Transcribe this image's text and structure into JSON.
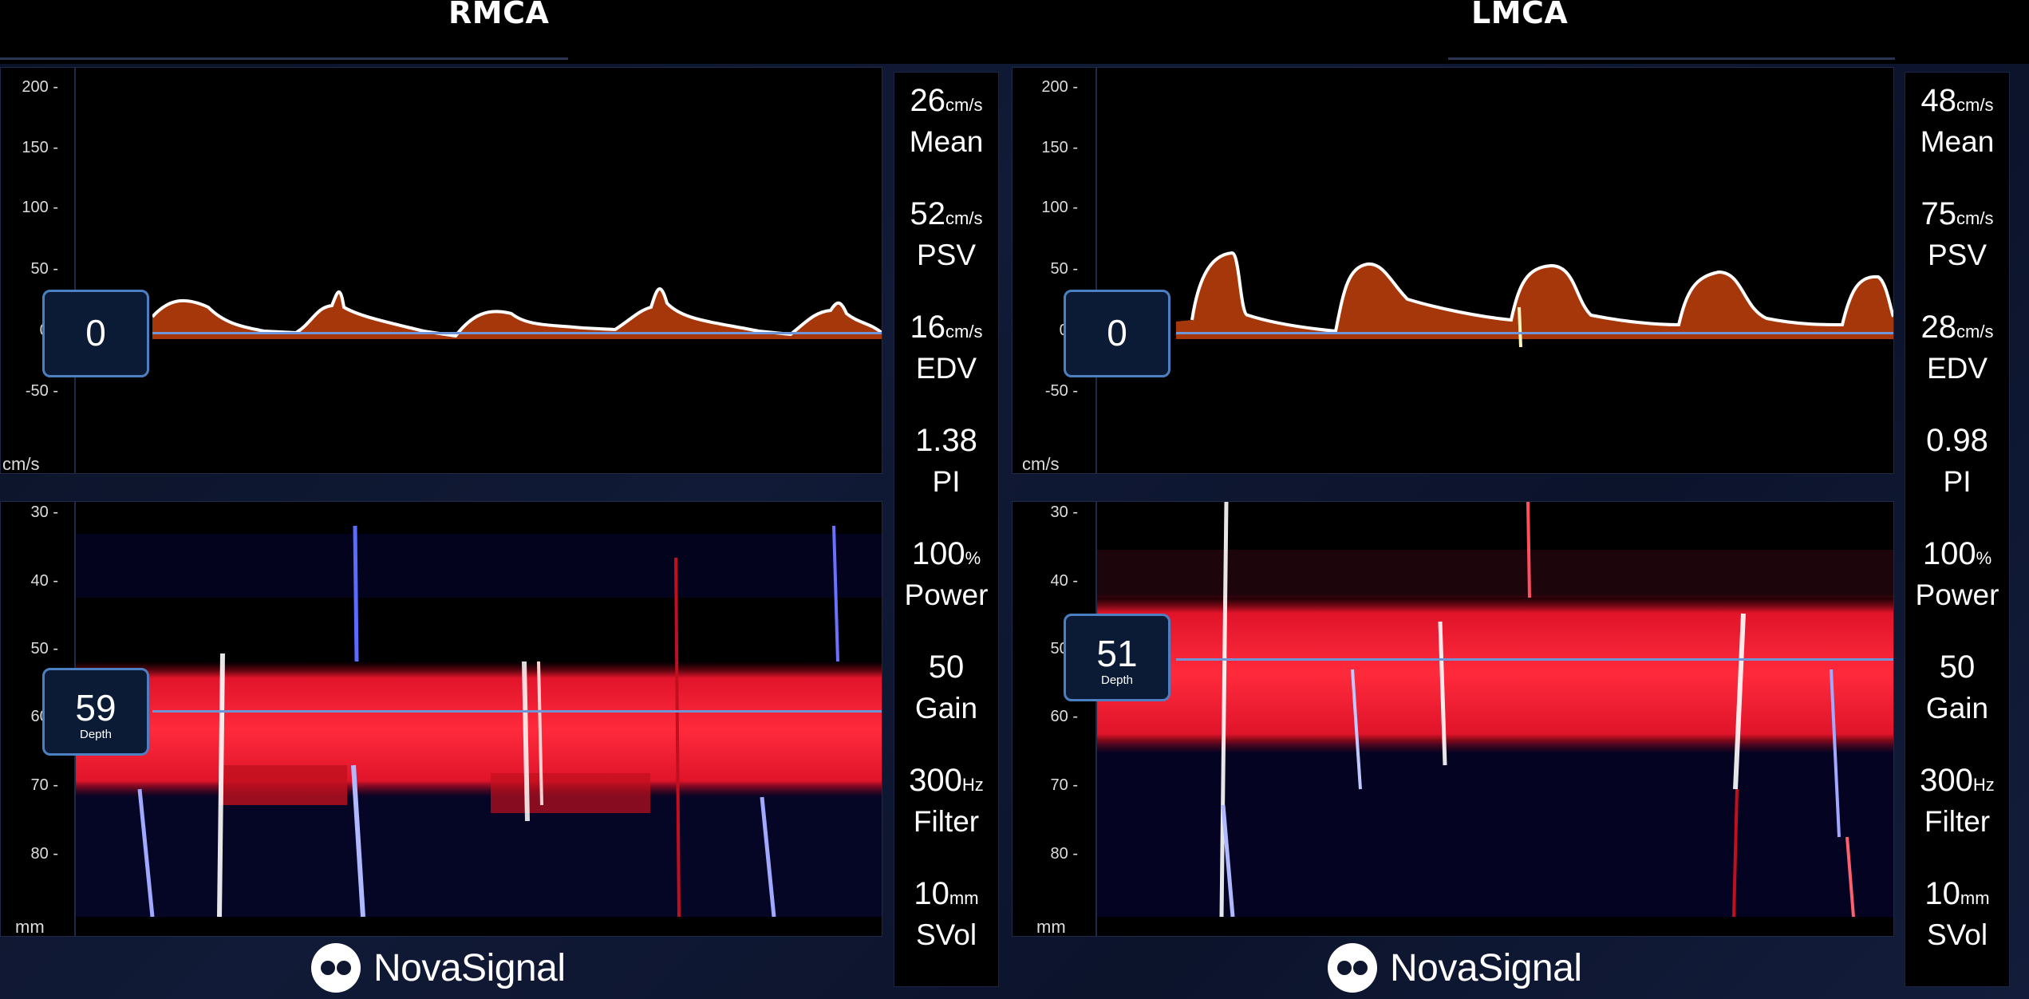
{
  "channels": [
    {
      "title": "RMCA",
      "velocity_axis": {
        "unit": "cm/s",
        "ticks": [
          "200 -",
          "150 -",
          "100 -",
          "50 -",
          "0 -",
          "-50 -"
        ]
      },
      "depth_axis": {
        "unit": "mm",
        "ticks": [
          "30 -",
          "40 -",
          "50 -",
          "60 -",
          "70 -",
          "80 -"
        ]
      },
      "baseline_marker": "0",
      "depth_marker": {
        "value": "59",
        "label": "Depth"
      },
      "stats": [
        {
          "value": "26",
          "unit": "cm/s",
          "label": "Mean"
        },
        {
          "value": "52",
          "unit": "cm/s",
          "label": "PSV"
        },
        {
          "value": "16",
          "unit": "cm/s",
          "label": "EDV"
        },
        {
          "value": "1.38",
          "unit": "",
          "label": "PI"
        },
        {
          "value": "100",
          "unit": "%",
          "label": "Power"
        },
        {
          "value": "50",
          "unit": "",
          "label": "Gain"
        },
        {
          "value": "300",
          "unit": "Hz",
          "label": "Filter"
        },
        {
          "value": "10",
          "unit": "mm",
          "label": "SVol"
        }
      ],
      "logo": "NovaSignal"
    },
    {
      "title": "LMCA",
      "velocity_axis": {
        "unit": "cm/s",
        "ticks": [
          "200 -",
          "150 -",
          "100 -",
          "50 -",
          "0 -",
          "-50 -"
        ]
      },
      "depth_axis": {
        "unit": "mm",
        "ticks": [
          "30 -",
          "40 -",
          "50 -",
          "60 -",
          "70 -",
          "80 -"
        ]
      },
      "baseline_marker": "0",
      "depth_marker": {
        "value": "51",
        "label": "Depth"
      },
      "stats": [
        {
          "value": "48",
          "unit": "cm/s",
          "label": "Mean"
        },
        {
          "value": "75",
          "unit": "cm/s",
          "label": "PSV"
        },
        {
          "value": "28",
          "unit": "cm/s",
          "label": "EDV"
        },
        {
          "value": "0.98",
          "unit": "",
          "label": "PI"
        },
        {
          "value": "100",
          "unit": "%",
          "label": "Power"
        },
        {
          "value": "50",
          "unit": "",
          "label": "Gain"
        },
        {
          "value": "300",
          "unit": "Hz",
          "label": "Filter"
        },
        {
          "value": "10",
          "unit": "mm",
          "label": "SVol"
        }
      ],
      "logo": "NovaSignal"
    }
  ],
  "colors": {
    "background": "#0f1630",
    "panel": "#000000",
    "envelope": "#ffffff",
    "spectral_fill": "#c2410c",
    "flow_toward": "#ff2030",
    "flow_away": "#2b2bd8",
    "marker_border": "#4d7fc3",
    "marker_line": "#6f95d6"
  }
}
